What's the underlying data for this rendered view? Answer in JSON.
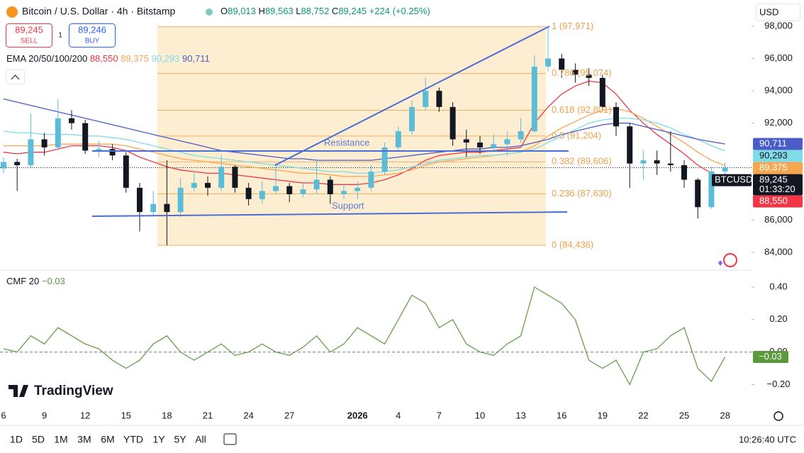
{
  "chart_data": [
    {
      "type": "candlestick",
      "title": "Bitcoin / U.S. Dollar · 4h · Bitstamp",
      "categories": [
        "6",
        null,
        null,
        "9",
        null,
        null,
        "12",
        null,
        null,
        "15",
        null,
        null,
        "18",
        null,
        null,
        "21",
        null,
        null,
        "24",
        null,
        null,
        "27",
        null,
        null,
        null,
        null,
        "2026",
        null,
        null,
        "4",
        null,
        null,
        "7",
        null,
        null,
        "10",
        null,
        null,
        "13",
        null,
        null,
        "16",
        null,
        null,
        "19",
        null,
        null,
        "22",
        null,
        null,
        "25",
        null,
        null,
        "28"
      ],
      "open": [
        89200,
        89600,
        89400,
        91000,
        90500,
        92300,
        92000,
        90300,
        90400,
        90000,
        88000,
        86500,
        87000,
        86500,
        88000,
        88300,
        88000,
        89300,
        88000,
        87300,
        87800,
        88100,
        87600,
        87900,
        88500,
        87600,
        87800,
        88000,
        89000,
        90500,
        91500,
        93000,
        94000,
        93000,
        91000,
        90800,
        90500,
        90700,
        91000,
        91500,
        95500,
        96000,
        95300,
        95000,
        94800,
        93000,
        91800,
        89500,
        89700,
        89500,
        89400,
        88500,
        86800,
        89013
      ],
      "high": [
        89900,
        89800,
        92600,
        91400,
        93500,
        92800,
        92200,
        90900,
        90700,
        90200,
        88300,
        87800,
        89700,
        88600,
        89000,
        88700,
        90000,
        89400,
        88300,
        88400,
        89500,
        88300,
        88300,
        89800,
        88700,
        88200,
        88400,
        89400,
        90800,
        91800,
        93400,
        94800,
        94200,
        93300,
        91600,
        91200,
        91300,
        91500,
        92300,
        96200,
        97971,
        96300,
        95700,
        95400,
        95000,
        93300,
        92000,
        90300,
        90300,
        91500,
        89700,
        88600,
        89300,
        89563
      ],
      "low": [
        88900,
        87800,
        89200,
        90000,
        90300,
        91600,
        90100,
        89900,
        89700,
        87700,
        85300,
        86300,
        84436,
        86200,
        87800,
        87500,
        87800,
        87700,
        86900,
        87000,
        87600,
        87100,
        87400,
        87600,
        87000,
        87300,
        87300,
        87800,
        88800,
        90300,
        91300,
        92800,
        92700,
        90600,
        89900,
        90100,
        90200,
        90000,
        90800,
        91400,
        95200,
        94800,
        94500,
        94300,
        92800,
        91200,
        88000,
        88500,
        88800,
        89000,
        88000,
        86100,
        86700,
        88752
      ],
      "close": [
        89600,
        89400,
        91000,
        90500,
        92300,
        92000,
        90300,
        90400,
        90000,
        88000,
        86500,
        87000,
        86500,
        88000,
        88300,
        88000,
        89300,
        88000,
        87300,
        87800,
        88100,
        87600,
        87900,
        88500,
        87600,
        87800,
        88000,
        89000,
        90500,
        91500,
        93000,
        94000,
        93000,
        91000,
        90800,
        90500,
        90700,
        91000,
        91500,
        95500,
        96000,
        95300,
        95000,
        94800,
        93000,
        91800,
        89500,
        89700,
        89500,
        89400,
        88500,
        86800,
        89013,
        89245
      ],
      "up_color": "#5bbcd8",
      "down_color": "#131722",
      "legend_title": "EMA 20/50/100/200",
      "series": [
        {
          "color": "#f23645",
          "last_label": "88,550",
          "values": [
            90200,
            90100,
            90200,
            90200,
            90400,
            90600,
            90600,
            90600,
            90500,
            90300,
            89900,
            89600,
            89300,
            89100,
            89000,
            88900,
            88900,
            88800,
            88700,
            88600,
            88500,
            88400,
            88300,
            88300,
            88200,
            88200,
            88200,
            88300,
            88500,
            88800,
            89200,
            89700,
            90000,
            90100,
            90200,
            90200,
            90300,
            90400,
            90500,
            92000,
            93000,
            93800,
            94300,
            94600,
            94500,
            93800,
            92800,
            92000,
            91300,
            90700,
            90100,
            89400,
            88900,
            88550
          ]
        },
        {
          "color": "#f7a650",
          "last_label": "89,375",
          "values": [
            90600,
            90600,
            90600,
            90600,
            90700,
            90700,
            90700,
            90700,
            90700,
            90600,
            90400,
            90200,
            90000,
            89800,
            89700,
            89600,
            89500,
            89400,
            89300,
            89200,
            89100,
            89000,
            88900,
            88900,
            88800,
            88700,
            88700,
            88700,
            88800,
            88900,
            89100,
            89400,
            89600,
            89700,
            89800,
            89900,
            90000,
            90100,
            90200,
            90600,
            91200,
            91700,
            92100,
            92500,
            92800,
            92900,
            92700,
            92300,
            91800,
            91300,
            90800,
            90200,
            89700,
            89375
          ]
        },
        {
          "color": "#7fdbe6",
          "last_label": "90,293",
          "values": [
            91500,
            91400,
            91400,
            91300,
            91300,
            91300,
            91200,
            91200,
            91100,
            91000,
            90800,
            90600,
            90400,
            90200,
            90000,
            89900,
            89800,
            89700,
            89600,
            89500,
            89400,
            89300,
            89200,
            89100,
            89000,
            89000,
            88900,
            88900,
            89000,
            89100,
            89300,
            89500,
            89700,
            89800,
            89900,
            90000,
            90000,
            90100,
            90200,
            90400,
            90800,
            91200,
            91600,
            92000,
            92200,
            92300,
            92300,
            92200,
            92000,
            91700,
            91300,
            91000,
            90600,
            90293
          ]
        },
        {
          "color": "#4a5cc8",
          "last_label": "90,711",
          "values": [
            93500,
            93300,
            93100,
            92900,
            92700,
            92500,
            92300,
            92100,
            91900,
            91700,
            91500,
            91300,
            91100,
            90900,
            90700,
            90500,
            90300,
            90200,
            90100,
            90000,
            89900,
            89800,
            89800,
            89700,
            89700,
            89700,
            89700,
            89700,
            89800,
            89900,
            90000,
            90100,
            90200,
            90300,
            90400,
            90400,
            90500,
            90500,
            90600,
            90800,
            91000,
            91300,
            91500,
            91700,
            91900,
            92000,
            92000,
            91800,
            91600,
            91400,
            91200,
            91000,
            90850,
            90711
          ]
        }
      ],
      "ylim": [
        82950,
        99620
      ],
      "yticks": [
        {
          "value": 98000,
          "label": "98,000"
        },
        {
          "value": 96000,
          "label": "96,000"
        },
        {
          "value": 94000,
          "label": "94,000"
        },
        {
          "value": 92000,
          "label": "92,000"
        },
        {
          "value": 86000,
          "label": "86,000"
        },
        {
          "value": 84000,
          "label": "84,000"
        }
      ],
      "fib_levels": [
        {
          "value": 97971,
          "label": "1 (97,971)"
        },
        {
          "value": 95074,
          "label": "0.786 (95,074)"
        },
        {
          "value": 92801,
          "label": "0.618 (92,801)"
        },
        {
          "value": 91204,
          "label": "0.5 (91,204)"
        },
        {
          "value": 89606,
          "label": "0.382 (89,606)"
        },
        {
          "value": 87630,
          "label": "0.236 (87,630)"
        },
        {
          "value": 84436,
          "label": "0 (84,436)"
        }
      ],
      "fib_color": "#f0a04b",
      "annotations": [
        "Resistance",
        "Support"
      ],
      "last_price": 89245,
      "last_price_label": "89,245",
      "symbol_tag": "BTCUSD",
      "countdown": "01:33:20"
    },
    {
      "type": "line",
      "series": [
        {
          "name": "CMF 20",
          "color": "#5b9a3c",
          "last_label": "−0.03",
          "values": [
            0.02,
            0.0,
            0.1,
            0.05,
            0.15,
            0.1,
            0.05,
            0.02,
            -0.05,
            -0.1,
            -0.05,
            0.05,
            0.1,
            0.0,
            -0.05,
            0.0,
            0.05,
            -0.02,
            0.0,
            0.05,
            0.0,
            -0.02,
            0.03,
            0.1,
            0.0,
            0.05,
            0.15,
            0.1,
            0.05,
            0.2,
            0.35,
            0.3,
            0.15,
            0.2,
            0.05,
            0.0,
            -0.02,
            0.05,
            0.1,
            0.4,
            0.35,
            0.3,
            0.2,
            -0.05,
            -0.1,
            -0.05,
            -0.2,
            0.0,
            0.02,
            0.1,
            0.15,
            -0.1,
            -0.18,
            -0.03
          ]
        }
      ],
      "ylim": [
        -0.32,
        0.5
      ],
      "yticks": [
        {
          "value": 0.4,
          "label": "0.40"
        },
        {
          "value": 0.2,
          "label": "0.20"
        },
        {
          "value": 0,
          "label": "0.00"
        },
        {
          "value": -0.2,
          "label": "−0.20"
        }
      ]
    }
  ],
  "ui": {
    "ohlc": [
      {
        "k": "O",
        "v": "89,013"
      },
      {
        "k": "H",
        "v": "89,563"
      },
      {
        "k": "L",
        "v": "88,752"
      },
      {
        "k": "C",
        "v": "89,245"
      }
    ],
    "change": "+224 (+0.25%)",
    "sell": {
      "price": "89,245",
      "label": "SELL"
    },
    "qty": "1",
    "buy": {
      "price": "89,246",
      "label": "BUY"
    },
    "currency": "USD",
    "timeframes": [
      "1D",
      "5D",
      "1M",
      "3M",
      "6M",
      "YTD",
      "1Y",
      "5Y",
      "All"
    ],
    "clock": "10:26:40 UTC",
    "logo": "TradingView"
  }
}
